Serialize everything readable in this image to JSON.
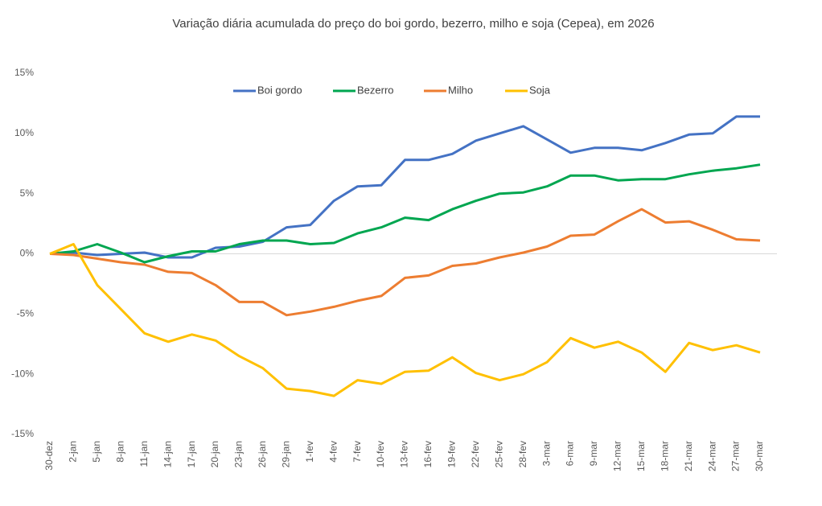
{
  "chart_data": {
    "type": "line",
    "title": "Variação diária acumulada do preço do boi gordo, bezerro, milho e soja (Cepea), em 2026",
    "categories": [
      "30-dez",
      "2-jan",
      "5-jan",
      "8-jan",
      "11-jan",
      "14-jan",
      "17-jan",
      "20-jan",
      "23-jan",
      "26-jan",
      "29-jan",
      "1-fev",
      "4-fev",
      "7-fev",
      "10-fev",
      "13-fev",
      "16-fev",
      "19-fev",
      "22-fev",
      "25-fev",
      "28-fev",
      "3-mar",
      "6-mar",
      "9-mar",
      "12-mar",
      "15-mar",
      "18-mar",
      "21-mar",
      "24-mar",
      "27-mar",
      "30-mar"
    ],
    "series": [
      {
        "name": "Boi gordo",
        "color": "#4472c4",
        "values": [
          0,
          0.1,
          -0.1,
          0,
          0.1,
          -0.3,
          -0.3,
          0.5,
          0.6,
          1.0,
          2.2,
          2.4,
          4.4,
          5.6,
          5.7,
          7.8,
          7.8,
          8.3,
          9.4,
          10.0,
          10.6,
          9.5,
          8.4,
          8.8,
          8.8,
          8.6,
          9.2,
          9.9,
          10.0,
          11.4,
          11.4
        ]
      },
      {
        "name": "Bezerro",
        "color": "#00a650",
        "values": [
          0,
          0.2,
          0.8,
          0.1,
          -0.7,
          -0.2,
          0.2,
          0.2,
          0.8,
          1.1,
          1.1,
          0.8,
          0.9,
          1.7,
          2.2,
          3.0,
          2.8,
          3.7,
          4.4,
          5.0,
          5.1,
          5.6,
          6.5,
          6.5,
          6.1,
          6.2,
          6.2,
          6.6,
          6.9,
          7.1,
          7.4
        ]
      },
      {
        "name": "Milho",
        "color": "#ed7d31",
        "values": [
          0,
          -0.1,
          -0.4,
          -0.7,
          -0.9,
          -1.5,
          -1.6,
          -2.6,
          -4.0,
          -4.0,
          -5.1,
          -4.8,
          -4.4,
          -3.9,
          -3.5,
          -2.0,
          -1.8,
          -1.0,
          -0.8,
          -0.3,
          0.1,
          0.6,
          1.5,
          1.6,
          2.7,
          3.7,
          2.6,
          2.7,
          2.0,
          1.2,
          1.1
        ]
      },
      {
        "name": "Soja",
        "color": "#ffc000",
        "values": [
          0,
          0.8,
          -2.6,
          -4.6,
          -6.6,
          -7.3,
          -6.7,
          -7.2,
          -8.5,
          -9.5,
          -11.2,
          -11.4,
          -11.8,
          -10.5,
          -10.8,
          -9.8,
          -9.7,
          -8.6,
          -9.9,
          -10.5,
          -10.0,
          -9.0,
          -7.0,
          -7.8,
          -7.3,
          -8.2,
          -9.8,
          -7.4,
          -8.0,
          -7.6,
          -8.2
        ]
      }
    ],
    "ylim": [
      -15,
      15
    ],
    "yticks": [
      {
        "value": -15,
        "label": "-15%"
      },
      {
        "value": -10,
        "label": "-10%"
      },
      {
        "value": -5,
        "label": "-5%"
      },
      {
        "value": 0,
        "label": "0%"
      },
      {
        "value": 5,
        "label": "5%"
      },
      {
        "value": 10,
        "label": "10%"
      },
      {
        "value": 15,
        "label": "15%"
      }
    ],
    "legend": "top"
  }
}
